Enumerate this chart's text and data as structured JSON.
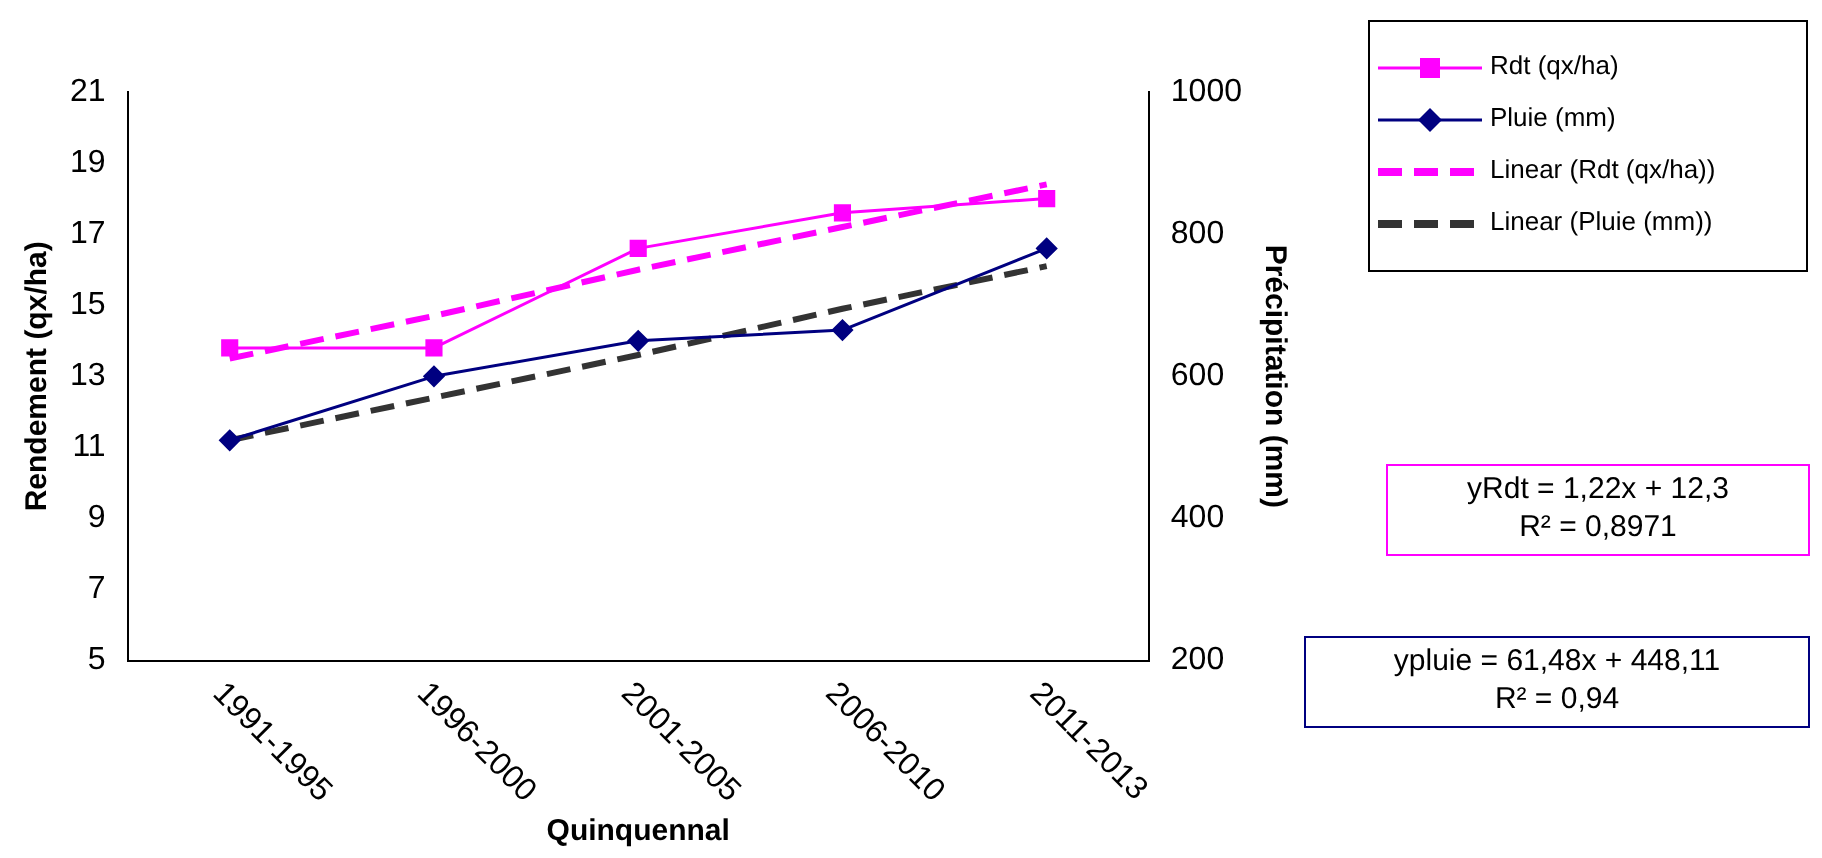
{
  "chart_data": {
    "type": "line",
    "xlabel": "Quinquennal",
    "ylabel": "Rendement (qx/ha)",
    "y2label": "Précipitation (mm)",
    "categories": [
      "1991-1995",
      "1996-2000",
      "2001-2005",
      "2006-2010",
      "2011-2013"
    ],
    "series": [
      {
        "name": "Rdt (qx/ha)",
        "color": "#ff00ff",
        "values": [
          13.8,
          13.8,
          16.6,
          17.6,
          18.0
        ],
        "marker": "square",
        "line_style": "solid"
      },
      {
        "name": "Pluie (mm)",
        "color": "#000080",
        "values": [
          510,
          600,
          650,
          665,
          780
        ],
        "marker": "diamond",
        "line_style": "solid",
        "axis": "y2"
      },
      {
        "name": "Linear (Rdt (qx/ha))",
        "color": "#ff00ff",
        "values": [
          13.5,
          14.7,
          16.0,
          17.2,
          18.4
        ],
        "marker": "none",
        "line_style": "dashed"
      },
      {
        "name": "Linear (Pluie (mm))",
        "color": "#333333",
        "values": [
          510,
          570,
          630,
          695,
          755
        ],
        "marker": "none",
        "line_style": "dashed",
        "axis": "y2"
      }
    ],
    "ylim": [
      5,
      21
    ],
    "yticks": [
      5,
      7,
      9,
      11,
      13,
      15,
      17,
      19,
      21
    ],
    "y2lim": [
      200,
      1000
    ],
    "y2ticks": [
      200,
      400,
      600,
      800,
      1000
    ],
    "grid": false,
    "legend": "top right",
    "annotations": [
      "yRdt = 1,22x + 12,3\nR² = 0,8971",
      "ypluie = 61,48x + 448,11\nR² = 0,94"
    ]
  }
}
